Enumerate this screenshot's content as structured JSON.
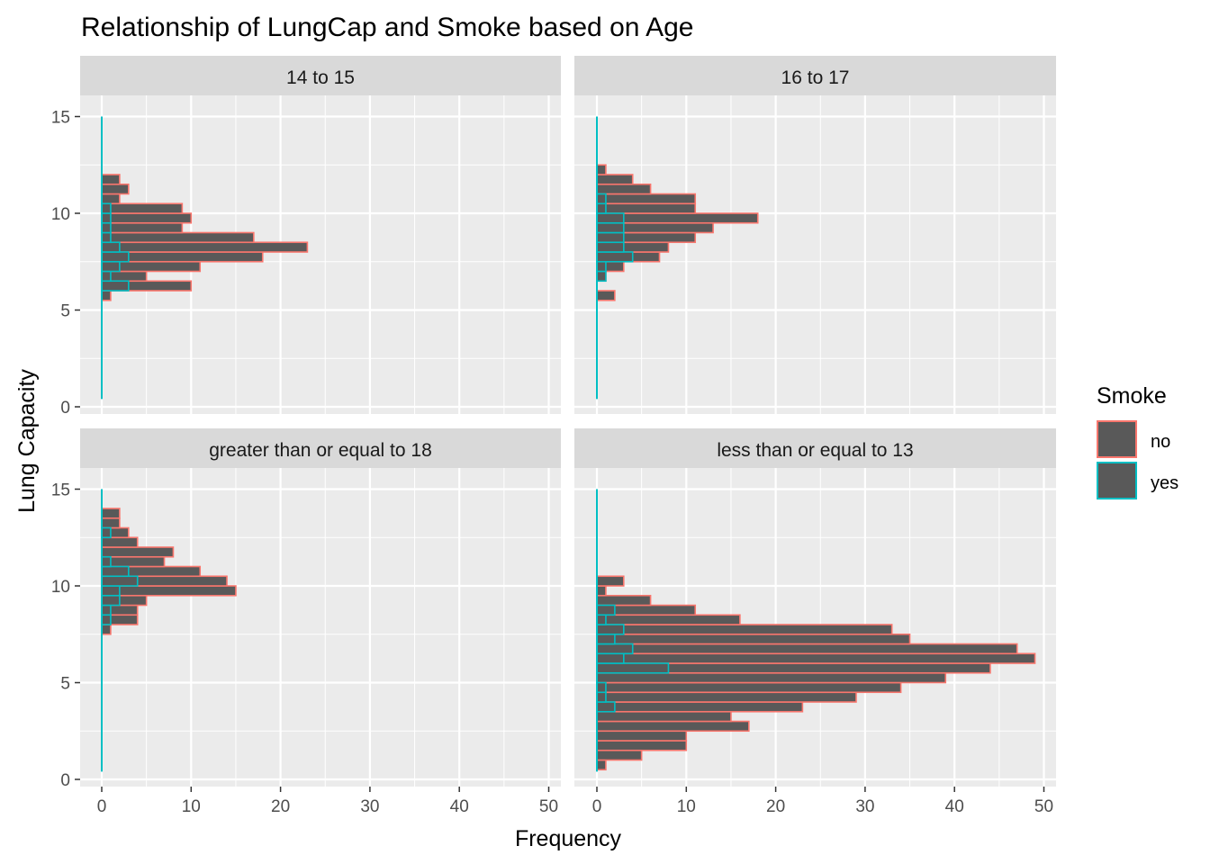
{
  "chart_data": {
    "type": "bar",
    "orientation": "horizontal",
    "title": "Relationship of LungCap and Smoke based on Age",
    "xlabel": "Frequency",
    "ylabel": "Lung Capacity",
    "xlim": [
      0,
      50
    ],
    "ylim": [
      0,
      15
    ],
    "x_ticks": [
      "0",
      "10",
      "20",
      "30",
      "40",
      "50"
    ],
    "y_ticks": [
      "0",
      "5",
      "10",
      "15"
    ],
    "bin_width": 0.5,
    "legend": {
      "title": "Smoke",
      "placement": "right",
      "entries": [
        {
          "name": "no",
          "color": "#F8766D"
        },
        {
          "name": "yes",
          "color": "#00BFC4"
        }
      ]
    },
    "colors": {
      "bar_fill": "#595959",
      "no": "#F8766D",
      "yes": "#00BFC4",
      "panel_bg": "#EBEBEB",
      "strip_bg": "#D9D9D9",
      "grid": "#FFFFFF"
    },
    "facets": [
      {
        "label": "14 to 15",
        "bins_y": [
          5.5,
          6.0,
          6.5,
          7.0,
          7.5,
          8.0,
          8.5,
          9.0,
          9.5,
          10.0,
          10.5,
          11.0,
          11.5,
          12.0,
          12.5,
          13.0
        ],
        "no": [
          1,
          10,
          5,
          11,
          18,
          23,
          17,
          9,
          10,
          9,
          2,
          3,
          2,
          0,
          0,
          0
        ],
        "yes": [
          0,
          3,
          1,
          2,
          3,
          2,
          1,
          1,
          1,
          1,
          0,
          0,
          0,
          0,
          0,
          0
        ]
      },
      {
        "label": "16 to 17",
        "bins_y": [
          5.5,
          6.0,
          6.5,
          7.0,
          7.5,
          8.0,
          8.5,
          9.0,
          9.5,
          10.0,
          10.5,
          11.0,
          11.5,
          12.0,
          12.5,
          13.0
        ],
        "no": [
          2,
          0,
          1,
          3,
          7,
          8,
          11,
          13,
          18,
          11,
          11,
          6,
          4,
          1,
          0,
          0
        ],
        "yes": [
          0,
          0,
          1,
          1,
          4,
          3,
          3,
          3,
          3,
          1,
          1,
          0,
          0,
          0,
          0,
          0
        ]
      },
      {
        "label": "greater than or equal to 18",
        "bins_y": [
          7.5,
          8.0,
          8.5,
          9.0,
          9.5,
          10.0,
          10.5,
          11.0,
          11.5,
          12.0,
          12.5,
          13.0,
          13.5,
          14.0,
          14.5
        ],
        "no": [
          1,
          4,
          4,
          5,
          15,
          14,
          11,
          7,
          8,
          4,
          3,
          2,
          2,
          0,
          0
        ],
        "yes": [
          0,
          1,
          1,
          2,
          2,
          4,
          3,
          1,
          0,
          0,
          1,
          0,
          0,
          0,
          0
        ]
      },
      {
        "label": "less than or equal to 13",
        "bins_y": [
          0.5,
          1.0,
          1.5,
          2.0,
          2.5,
          3.0,
          3.5,
          4.0,
          4.5,
          5.0,
          5.5,
          6.0,
          6.5,
          7.0,
          7.5,
          8.0,
          8.5,
          9.0,
          9.5,
          10.0,
          10.5,
          11.0,
          11.5,
          12.0
        ],
        "no": [
          1,
          5,
          10,
          10,
          17,
          15,
          23,
          29,
          34,
          39,
          44,
          49,
          47,
          35,
          33,
          16,
          11,
          6,
          1,
          3,
          0,
          0,
          0,
          0
        ],
        "yes": [
          0,
          0,
          0,
          0,
          0,
          0,
          2,
          1,
          1,
          0,
          8,
          3,
          4,
          2,
          3,
          1,
          2,
          0,
          0,
          0,
          0,
          0,
          0,
          0
        ]
      }
    ]
  }
}
